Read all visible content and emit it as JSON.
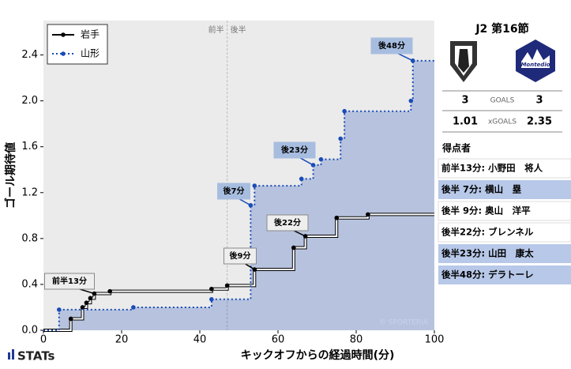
{
  "chart_data": {
    "type": "step",
    "x_label": "キックオフからの経過時間(分)",
    "y_label": "ゴール期待値",
    "xlim": [
      0,
      100
    ],
    "xticks": [
      0,
      20,
      40,
      60,
      80,
      100
    ],
    "ylim": [
      0,
      2.7
    ],
    "yticks": [
      {
        "value": 0,
        "label": "0.0"
      },
      0.4,
      0.8,
      1.2,
      1.6,
      {
        "value": 2,
        "label": "2.0"
      },
      2.4
    ],
    "half_time": {
      "x": 47,
      "before": "前半",
      "after": "後半"
    },
    "legend": "top-left",
    "watermark": "© SPORTERIA",
    "series": [
      {
        "name": "岩手",
        "color": "#000000",
        "x": [
          0,
          7,
          10,
          11,
          12,
          13,
          17,
          43,
          47,
          54,
          64,
          67,
          75,
          83,
          100
        ],
        "values": [
          0,
          0.1,
          0.2,
          0.24,
          0.28,
          0.32,
          0.34,
          0.36,
          0.39,
          0.53,
          0.72,
          0.82,
          0.98,
          1.01,
          1.01
        ],
        "annotations": [
          {
            "text": "前半13分",
            "x": 13,
            "y": 0.32
          },
          {
            "text": "後9分",
            "x": 54,
            "y": 0.53
          },
          {
            "text": "後22分",
            "x": 67,
            "y": 0.82
          }
        ]
      },
      {
        "name": "山形",
        "color": "#1a4cb8",
        "x": [
          0,
          4,
          23,
          43,
          53,
          54,
          66,
          69,
          71,
          76,
          77,
          94,
          94.5,
          100
        ],
        "values": [
          0,
          0.18,
          0.2,
          0.27,
          1.09,
          1.26,
          1.32,
          1.44,
          1.49,
          1.67,
          1.91,
          2.0,
          2.35,
          2.35
        ],
        "annotations": [
          {
            "text": "後7分",
            "x": 53,
            "y": 1.09
          },
          {
            "text": "後23分",
            "x": 69,
            "y": 1.44
          },
          {
            "text": "後48分",
            "x": 94.5,
            "y": 2.35
          }
        ]
      }
    ]
  },
  "brand": "STATs",
  "panel": {
    "title": "J2 第16節",
    "away_logo": "Montedio",
    "goals": {
      "home": 3,
      "label": "GOALS",
      "away": 3
    },
    "xgoals": {
      "home": 1.01,
      "label": "xGOALS",
      "away": 2.35
    },
    "scorers_title": "得点者",
    "scorers": [
      "前半13分: 小野田　将人",
      "後半 7分: 横山　塁",
      "後半 9分: 奥山　洋平",
      "後半22分: ブレンネル",
      "後半23分: 山田　康太",
      "後半48分: デラトーレ"
    ]
  }
}
